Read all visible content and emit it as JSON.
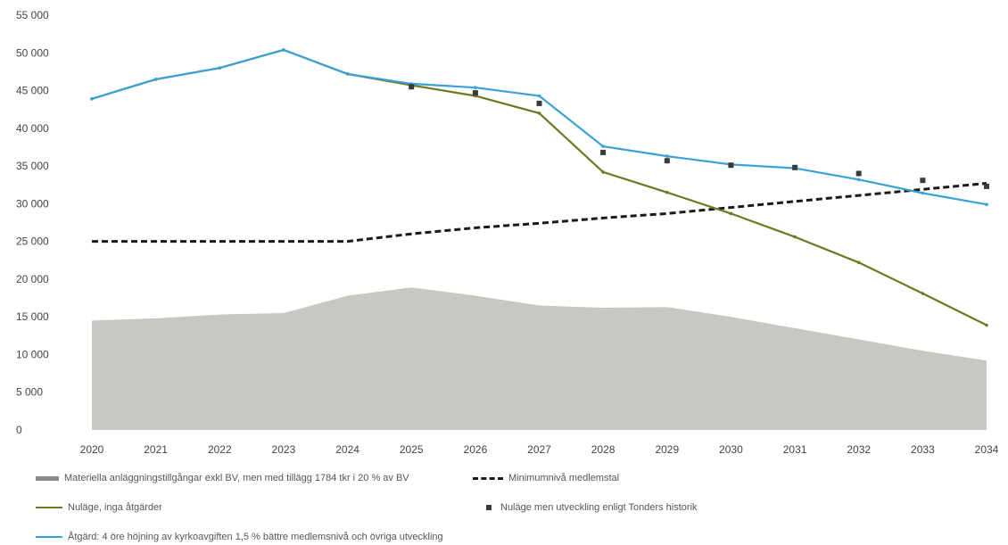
{
  "chart_data": {
    "type": "line",
    "x": [
      "2020",
      "2021",
      "2022",
      "2023",
      "2024",
      "2025",
      "2026",
      "2027",
      "2028",
      "2029",
      "2030",
      "2031",
      "2032",
      "2033",
      "2034"
    ],
    "ylim": [
      0,
      55000
    ],
    "yticks": [
      "0",
      "5 000",
      "10 000",
      "15 000",
      "20 000",
      "25 000",
      "30 000",
      "35 000",
      "40 000",
      "45 000",
      "50 000",
      "55 000"
    ],
    "ytick_values": [
      0,
      5000,
      10000,
      15000,
      20000,
      25000,
      30000,
      35000,
      40000,
      45000,
      50000,
      55000
    ],
    "grid": false,
    "legend_position": "bottom",
    "series": [
      {
        "name": "Materiella anläggningstillgångar exkl BV, men med tillägg 1784 tkr i 20 % av BV",
        "kind": "area",
        "color": "#c8c8c2",
        "values": [
          14500,
          14800,
          15300,
          15500,
          17800,
          18900,
          17800,
          16500,
          16200,
          16300,
          15000,
          13500,
          12000,
          10500,
          9200
        ]
      },
      {
        "name": "Minimumnivå medlemstal",
        "kind": "dashed",
        "color": "#1a1a1a",
        "values": [
          25000,
          25000,
          25000,
          25000,
          25000,
          26000,
          26800,
          27400,
          28100,
          28700,
          29500,
          30300,
          31100,
          31900,
          32700
        ]
      },
      {
        "name": "Nuläge, inga åtgärder",
        "kind": "line",
        "color": "#6b7a1f",
        "values": [
          43900,
          46500,
          48000,
          50400,
          47200,
          45700,
          44300,
          42000,
          34200,
          31500,
          28700,
          25600,
          22200,
          18100,
          13900
        ]
      },
      {
        "name": "Nuläge men utveckling enligt Tonders historik",
        "kind": "markers",
        "color": "#3a3a3a",
        "values": [
          43900,
          46500,
          48000,
          50400,
          47200,
          45500,
          44700,
          43300,
          36800,
          35700,
          35100,
          34800,
          34000,
          33100,
          32300
        ]
      },
      {
        "name": "Åtgärd: 4 öre höjning av kyrkoavgiften 1,5 % bättre medlemsnivå och övriga utveckling",
        "kind": "line",
        "color": "#3aa0d8",
        "values": [
          43900,
          46500,
          48000,
          50400,
          47200,
          45900,
          45400,
          44300,
          37600,
          36300,
          35200,
          34700,
          33200,
          31400,
          29900
        ]
      }
    ]
  }
}
